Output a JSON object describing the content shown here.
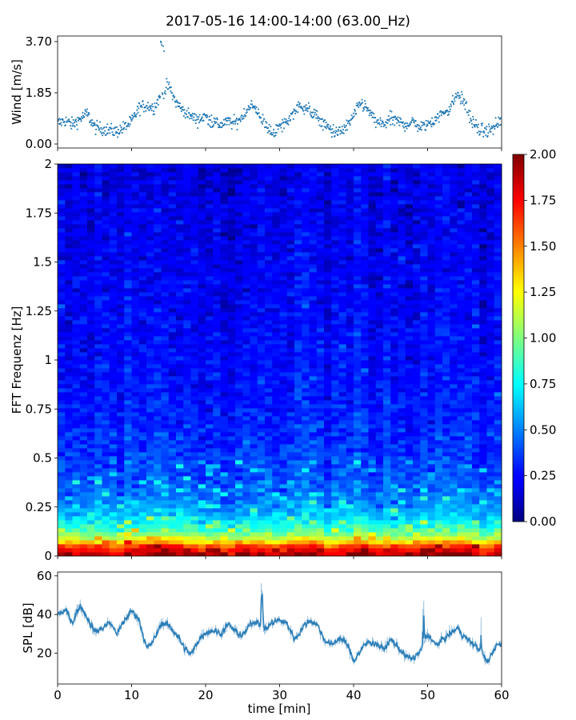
{
  "title": "2017-05-16 14:00-14:00 (63.00_Hz)",
  "chart_data": [
    {
      "type": "scatter",
      "panel": "wind",
      "ylabel": "Wind [m/s]",
      "xlim": [
        0,
        60
      ],
      "ylim": [
        0.0,
        3.7
      ],
      "yticks": [
        "0.00",
        "1.85",
        "3.70"
      ],
      "marker_color": "#1f77b4",
      "wind_profile": {
        "x": [
          0,
          1,
          2,
          3,
          4,
          5,
          6,
          7,
          8,
          9,
          10,
          11,
          12,
          13,
          14,
          15,
          16,
          17,
          18,
          19,
          20,
          21,
          22,
          23,
          24,
          25,
          26,
          27,
          28,
          29,
          30,
          31,
          32,
          33,
          34,
          35,
          36,
          37,
          38,
          39,
          40,
          41,
          42,
          43,
          44,
          45,
          46,
          47,
          48,
          49,
          50,
          51,
          52,
          53,
          54,
          55,
          56,
          57,
          58,
          59,
          60
        ],
        "y": [
          0.75,
          0.85,
          0.7,
          0.9,
          1.1,
          0.6,
          0.55,
          0.5,
          0.45,
          0.6,
          0.8,
          1.3,
          1.4,
          1.3,
          1.8,
          2.1,
          1.5,
          1.2,
          1.0,
          0.9,
          1.0,
          0.8,
          0.7,
          0.8,
          0.75,
          1.0,
          1.4,
          1.2,
          0.7,
          0.4,
          0.6,
          0.8,
          1.2,
          1.4,
          1.2,
          1.0,
          0.7,
          0.5,
          0.4,
          0.6,
          1.0,
          1.5,
          1.2,
          0.8,
          0.7,
          0.9,
          0.8,
          0.7,
          0.8,
          0.6,
          0.7,
          0.9,
          1.1,
          1.3,
          1.8,
          1.5,
          0.8,
          0.5,
          0.45,
          0.6,
          0.9
        ]
      }
    },
    {
      "type": "heatmap",
      "panel": "spectrogram",
      "ylabel": "FFT Frequenz [Hz]",
      "xlim": [
        0,
        60
      ],
      "ylim": [
        0,
        2
      ],
      "yticks": [
        "0",
        "0.25",
        "0.5",
        "0.75",
        "1",
        "1.25",
        "1.5",
        "1.75",
        "2"
      ],
      "colormap": "jet",
      "colorbar": {
        "range": [
          0.0,
          2.0
        ],
        "ticks": [
          "0.00",
          "0.25",
          "0.50",
          "0.75",
          "1.00",
          "1.25",
          "1.50",
          "1.75",
          "2.00"
        ]
      },
      "mean_level_by_frequency": {
        "frequency_hz": [
          0.0,
          0.05,
          0.1,
          0.15,
          0.2,
          0.25,
          0.3,
          0.4,
          0.5,
          0.75,
          1.0,
          1.5,
          2.0
        ],
        "value": [
          1.9,
          1.6,
          1.05,
          0.8,
          0.65,
          0.55,
          0.48,
          0.4,
          0.36,
          0.3,
          0.26,
          0.22,
          0.18
        ]
      }
    },
    {
      "type": "line",
      "panel": "spl",
      "ylabel": "SPL [dB]",
      "xlabel": "time [min]",
      "xlim": [
        0,
        60
      ],
      "ylim": [
        4,
        62
      ],
      "yticks": [
        "20",
        "40",
        "60"
      ],
      "xticks": [
        "0",
        "10",
        "20",
        "30",
        "40",
        "50",
        "60"
      ],
      "line_color": "#1f77b4",
      "series": {
        "x": [
          0,
          1,
          2,
          3,
          4,
          5,
          6,
          7,
          8,
          9,
          10,
          11,
          12,
          13,
          14,
          15,
          16,
          17,
          18,
          19,
          20,
          21,
          22,
          23,
          24,
          25,
          26,
          27,
          28,
          29,
          30,
          31,
          32,
          33,
          34,
          35,
          36,
          37,
          38,
          39,
          40,
          41,
          42,
          43,
          44,
          45,
          46,
          47,
          48,
          49,
          50,
          51,
          52,
          53,
          54,
          55,
          56,
          57,
          58,
          59,
          60
        ],
        "y": [
          40,
          42,
          36,
          45,
          38,
          31,
          33,
          36,
          30,
          37,
          42,
          37,
          22,
          27,
          36,
          34,
          30,
          23,
          19,
          27,
          31,
          32,
          30,
          35,
          31,
          29,
          35,
          37,
          32,
          36,
          37,
          35,
          27,
          33,
          37,
          35,
          27,
          24,
          28,
          25,
          16,
          22,
          26,
          25,
          22,
          27,
          23,
          18,
          17,
          21,
          30,
          24,
          27,
          30,
          33,
          28,
          25,
          22,
          15,
          23,
          26
        ]
      }
    }
  ]
}
